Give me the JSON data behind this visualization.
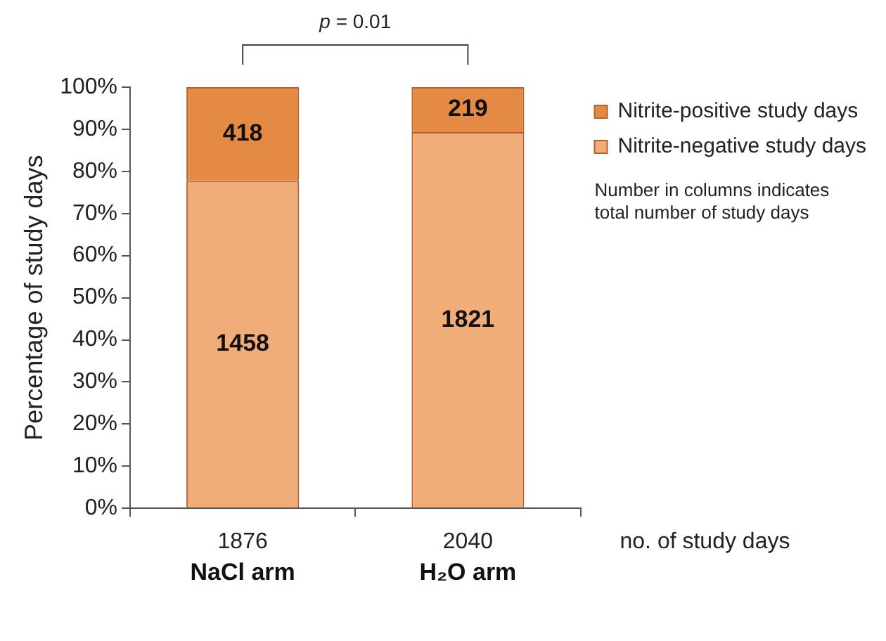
{
  "chart_data": {
    "type": "bar",
    "stacked": true,
    "ylabel": "Percentage of study days",
    "categories": [
      "NaCl arm",
      "H₂O arm"
    ],
    "series": [
      {
        "name": "Nitrite-negative study days",
        "color": "#f0ad78",
        "values": [
          77.7,
          89.3
        ]
      },
      {
        "name": "Nitrite-positive study days",
        "color": "#e58a45",
        "values": [
          22.3,
          10.7
        ]
      }
    ],
    "ylim": [
      0,
      100
    ],
    "yticks": [
      {
        "value": 0,
        "label": "0%"
      },
      {
        "value": 10,
        "label": "10%"
      },
      {
        "value": 20,
        "label": "20%"
      },
      {
        "value": 30,
        "label": "30%"
      },
      {
        "value": 40,
        "label": "40%"
      },
      {
        "value": 50,
        "label": "50%"
      },
      {
        "value": 60,
        "label": "60%"
      },
      {
        "value": 70,
        "label": "70%"
      },
      {
        "value": 80,
        "label": "80%"
      },
      {
        "value": 90,
        "label": "90%"
      },
      {
        "value": 100,
        "label": "100%"
      }
    ],
    "grid": false,
    "legend": "right",
    "annotations": [
      "1458",
      "418",
      "1821",
      "219",
      "1876",
      "2040",
      "no. of study days",
      "p = 0.01",
      "Number in columns indicates\ntotal number of study days"
    ]
  }
}
